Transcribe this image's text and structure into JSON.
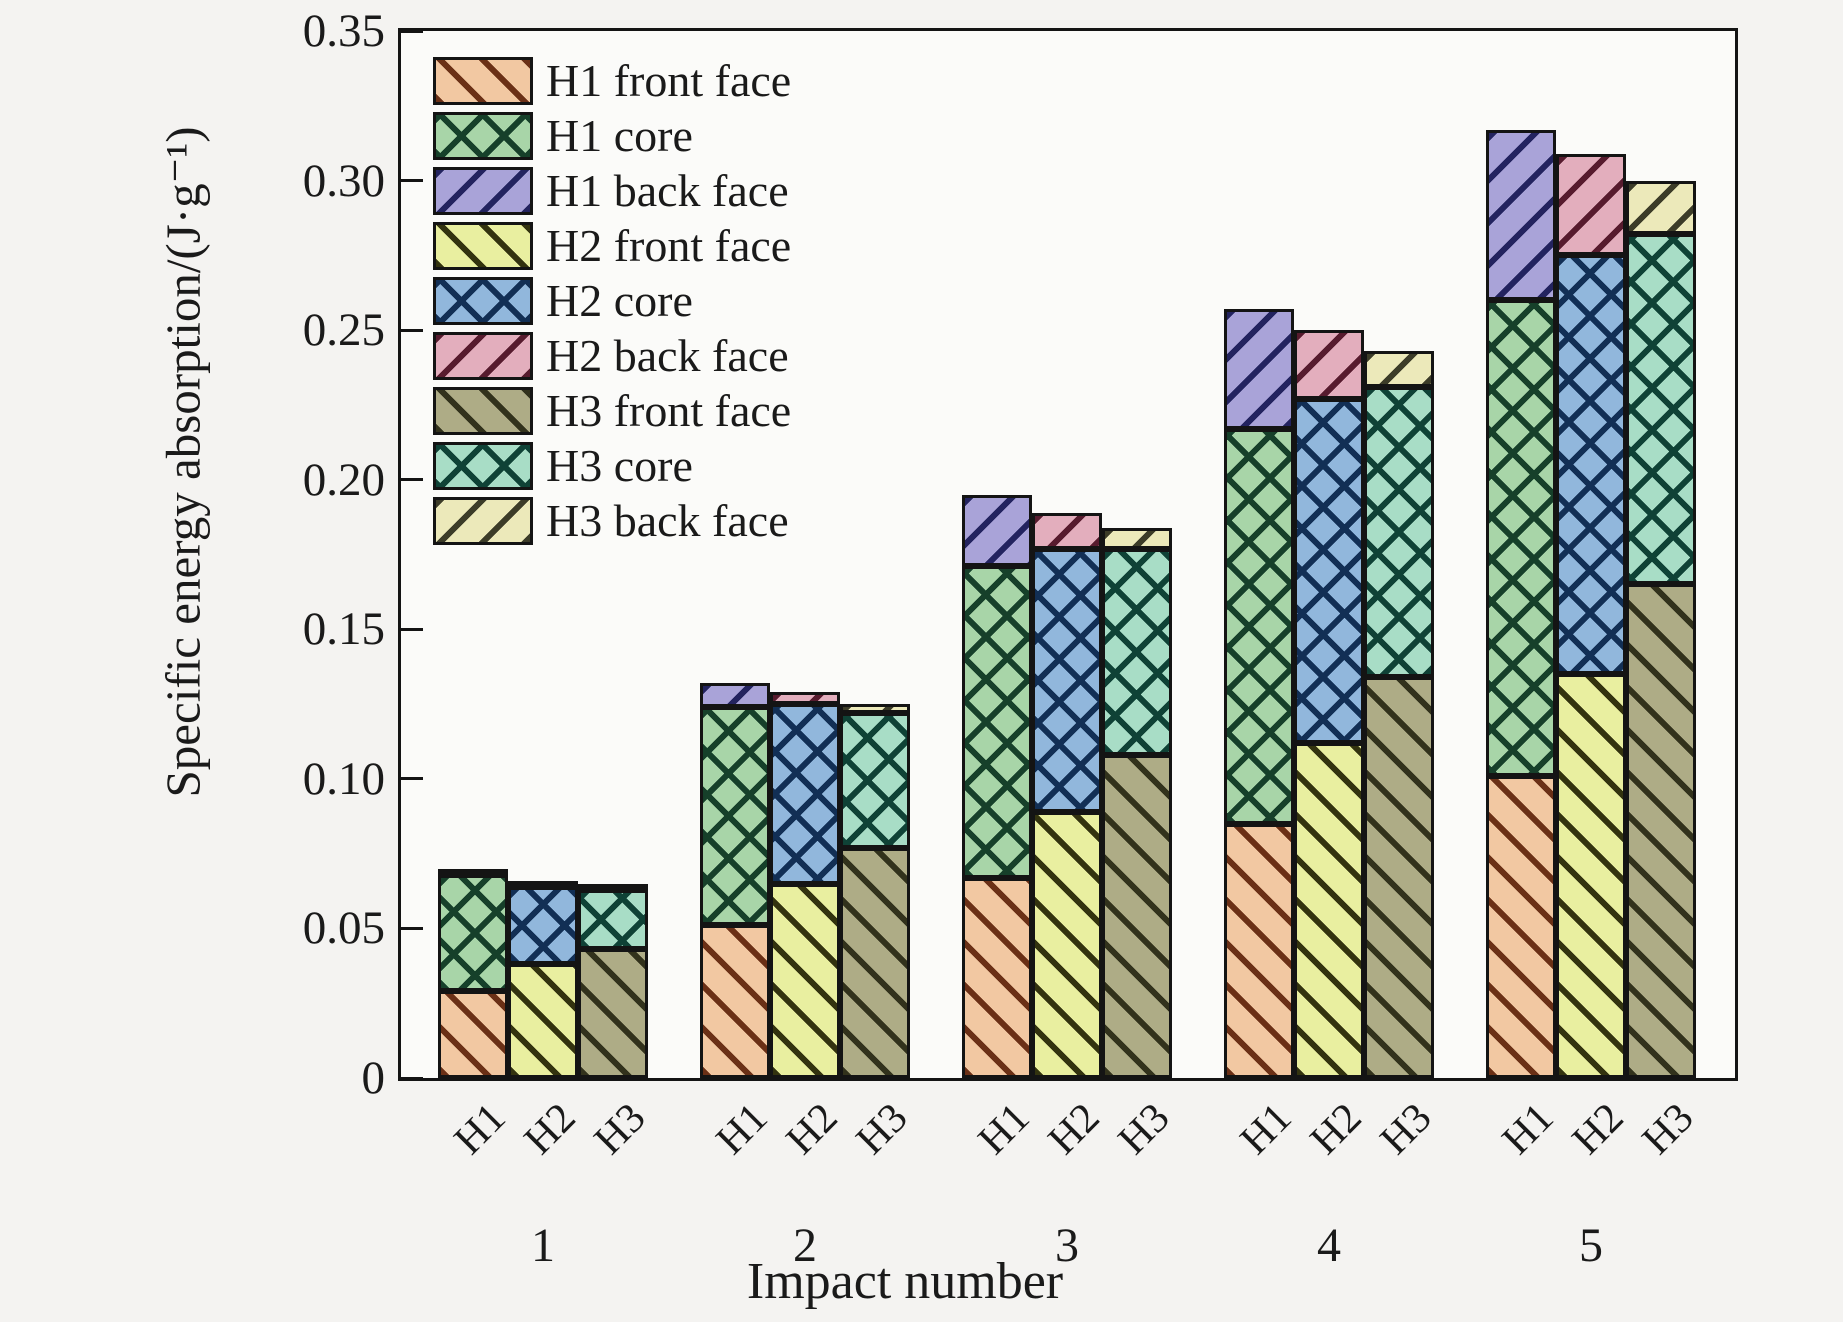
{
  "figure": {
    "background": "#f4f3f1",
    "plot_background": "#fbfbf9",
    "frame_color": "#141414",
    "text_color": "#1a1a1a"
  },
  "chart_data": {
    "type": "bar",
    "stacked": true,
    "grid": false,
    "legend_position": "upper-left-inside",
    "xlabel": "Impact number",
    "ylabel": "Specific energy absorption/(J·g⁻¹)",
    "ylim": [
      0,
      0.35
    ],
    "yticks": [
      "0",
      "0.05",
      "0.10",
      "0.15",
      "0.20",
      "0.25",
      "0.30",
      "0.35"
    ],
    "categories": [
      "1",
      "2",
      "3",
      "4",
      "5"
    ],
    "bars_per_group": [
      "H1",
      "H2",
      "H3"
    ],
    "series": [
      {
        "name": "H1 front face",
        "bar": "H1",
        "part": "front",
        "pattern": "diag-up",
        "fill": "#f2c8a2",
        "line": "#6b3016",
        "values": [
          0.029,
          0.051,
          0.067,
          0.085,
          0.101
        ]
      },
      {
        "name": "H1 core",
        "bar": "H1",
        "part": "core",
        "pattern": "cross",
        "fill": "#a8d5a8",
        "line": "#16402a",
        "values": [
          0.039,
          0.073,
          0.104,
          0.132,
          0.159
        ]
      },
      {
        "name": "H1 back face",
        "bar": "H1",
        "part": "back",
        "pattern": "diag-down",
        "fill": "#a9a3d8",
        "line": "#23235f",
        "values": [
          0.001,
          0.008,
          0.024,
          0.04,
          0.057
        ]
      },
      {
        "name": "H2 front face",
        "bar": "H2",
        "part": "front",
        "pattern": "diag-up",
        "fill": "#e9efa0",
        "line": "#33330f",
        "values": [
          0.038,
          0.065,
          0.089,
          0.112,
          0.135
        ]
      },
      {
        "name": "H2 core",
        "bar": "H2",
        "part": "core",
        "pattern": "cross",
        "fill": "#91b7dc",
        "line": "#122f55",
        "values": [
          0.026,
          0.06,
          0.088,
          0.115,
          0.14
        ]
      },
      {
        "name": "H2 back face",
        "bar": "H2",
        "part": "back",
        "pattern": "diag-down",
        "fill": "#e3aebd",
        "line": "#571b2e",
        "values": [
          0.001,
          0.004,
          0.012,
          0.023,
          0.034
        ]
      },
      {
        "name": "H3 front face",
        "bar": "H3",
        "part": "front",
        "pattern": "diag-up",
        "fill": "#aeac86",
        "line": "#32321c",
        "values": [
          0.043,
          0.077,
          0.108,
          0.134,
          0.165
        ]
      },
      {
        "name": "H3 core",
        "bar": "H3",
        "part": "core",
        "pattern": "cross",
        "fill": "#a8ddc6",
        "line": "#0f4236",
        "values": [
          0.02,
          0.045,
          0.069,
          0.097,
          0.117
        ]
      },
      {
        "name": "H3 back face",
        "bar": "H3",
        "part": "back",
        "pattern": "diag-down",
        "fill": "#ece9ba",
        "line": "#3c3c28",
        "values": [
          0.001,
          0.003,
          0.007,
          0.012,
          0.018
        ]
      }
    ],
    "bar_totals": {
      "H1": [
        0.069,
        0.132,
        0.195,
        0.257,
        0.317
      ],
      "H2": [
        0.065,
        0.129,
        0.189,
        0.25,
        0.309
      ],
      "H3": [
        0.064,
        0.125,
        0.184,
        0.243,
        0.3
      ]
    }
  }
}
